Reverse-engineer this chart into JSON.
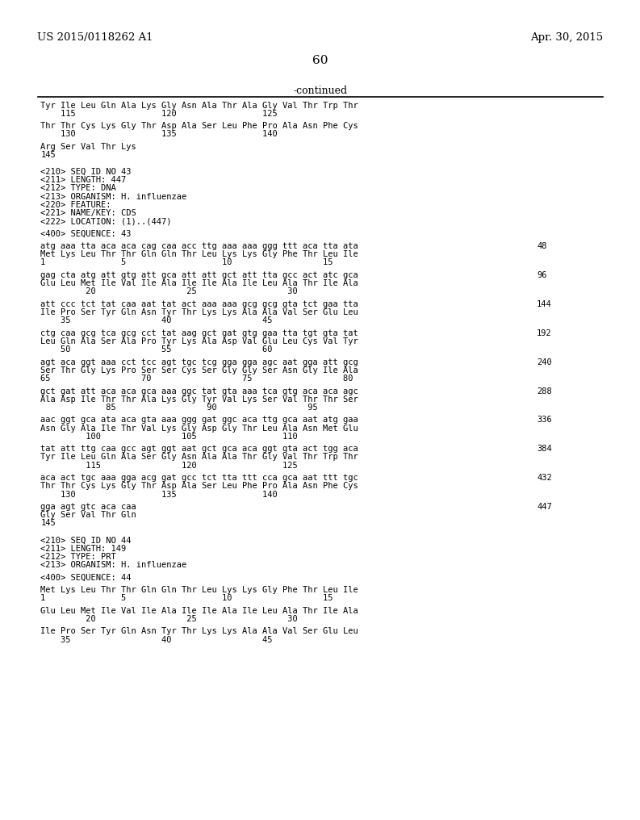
{
  "header_left": "US 2015/0118262 A1",
  "header_right": "Apr. 30, 2015",
  "page_number": "60",
  "continued_label": "-continued",
  "background_color": "#ffffff",
  "text_color": "#000000",
  "mono_font_size": 7.5,
  "header_font_size": 9.5,
  "page_num_font_size": 11,
  "content": [
    {
      "type": "text",
      "text": "Tyr Ile Leu Gln Ala Lys Gly Asn Ala Thr Ala Gly Val Thr Trp Thr"
    },
    {
      "type": "text",
      "text": "    115                 120                 125"
    },
    {
      "type": "spacer"
    },
    {
      "type": "text",
      "text": "Thr Thr Cys Lys Gly Thr Asp Ala Ser Leu Phe Pro Ala Asn Phe Cys"
    },
    {
      "type": "text",
      "text": "    130                 135                 140"
    },
    {
      "type": "spacer"
    },
    {
      "type": "text",
      "text": "Arg Ser Val Thr Lys"
    },
    {
      "type": "text",
      "text": "145"
    },
    {
      "type": "spacer"
    },
    {
      "type": "spacer"
    },
    {
      "type": "text",
      "text": "<210> SEQ ID NO 43"
    },
    {
      "type": "text",
      "text": "<211> LENGTH: 447"
    },
    {
      "type": "text",
      "text": "<212> TYPE: DNA"
    },
    {
      "type": "text",
      "text": "<213> ORGANISM: H. influenzae"
    },
    {
      "type": "text",
      "text": "<220> FEATURE:"
    },
    {
      "type": "text",
      "text": "<221> NAME/KEY: CDS"
    },
    {
      "type": "text",
      "text": "<222> LOCATION: (1)..(447)"
    },
    {
      "type": "spacer"
    },
    {
      "type": "text",
      "text": "<400> SEQUENCE: 43"
    },
    {
      "type": "spacer"
    },
    {
      "type": "seq_block",
      "dna": "atg aaa tta aca aca cag caa acc ttg aaa aaa ggg ttt aca tta ata",
      "aa": "Met Lys Leu Thr Thr Gln Gln Thr Leu Lys Lys Gly Phe Thr Leu Ile",
      "nums": "1               5                   10                  15",
      "num_right": "48"
    },
    {
      "type": "spacer"
    },
    {
      "type": "seq_block",
      "dna": "gag cta atg att gtg att gca att att gct att tta gcc act atc gca",
      "aa": "Glu Leu Met Ile Val Ile Ala Ile Ile Ala Ile Leu Ala Thr Ile Ala",
      "nums": "         20                  25                  30",
      "num_right": "96"
    },
    {
      "type": "spacer"
    },
    {
      "type": "seq_block",
      "dna": "att ccc tct tat caa aat tat act aaa aaa gcg gcg gta tct gaa tta",
      "aa": "Ile Pro Ser Tyr Gln Asn Tyr Thr Lys Lys Ala Ala Val Ser Glu Leu",
      "nums": "    35                  40                  45",
      "num_right": "144"
    },
    {
      "type": "spacer"
    },
    {
      "type": "seq_block",
      "dna": "ctg caa gcg tca gcg cct tat aag gct gat gtg gaa tta tgt gta tat",
      "aa": "Leu Gln Ala Ser Ala Pro Tyr Lys Ala Asp Val Glu Leu Cys Val Tyr",
      "nums": "    50                  55                  60",
      "num_right": "192"
    },
    {
      "type": "spacer"
    },
    {
      "type": "seq_block",
      "dna": "agt aca ggt aaa cct tcc agt tgc tcg gga gga agc aat gga att gcg",
      "aa": "Ser Thr Gly Lys Pro Ser Ser Cys Ser Gly Gly Ser Asn Gly Ile Ala",
      "nums": "65                  70                  75                  80",
      "num_right": "240"
    },
    {
      "type": "spacer"
    },
    {
      "type": "seq_block",
      "dna": "gct gat att aca aca gca aaa ggc tat gta aaa tca gtg aca aca agc",
      "aa": "Ala Asp Ile Thr Thr Ala Lys Gly Tyr Val Lys Ser Val Thr Thr Ser",
      "nums": "             85                  90                  95",
      "num_right": "288"
    },
    {
      "type": "spacer"
    },
    {
      "type": "seq_block",
      "dna": "aac ggt gca ata aca gta aaa ggg gat ggc aca ttg gca aat atg gaa",
      "aa": "Asn Gly Ala Ile Thr Val Lys Gly Asp Gly Thr Leu Ala Asn Met Glu",
      "nums": "         100                105                 110",
      "num_right": "336"
    },
    {
      "type": "spacer"
    },
    {
      "type": "seq_block",
      "dna": "tat att ttg caa gcc agt ggt aat gct gca aca ggt gta act tgg aca",
      "aa": "Tyr Ile Leu Gln Ala Ser Gly Asn Ala Ala Thr Gly Val Thr Trp Thr",
      "nums": "         115                120                 125",
      "num_right": "384"
    },
    {
      "type": "spacer"
    },
    {
      "type": "seq_block",
      "dna": "aca act tgc aaa gga acg gat gcc tct tta ttt cca gca aat ttt tgc",
      "aa": "Thr Thr Cys Lys Gly Thr Asp Ala Ser Leu Phe Pro Ala Asn Phe Cys",
      "nums": "    130                 135                 140",
      "num_right": "432"
    },
    {
      "type": "spacer"
    },
    {
      "type": "seq_block",
      "dna": "gga agt gtc aca caa",
      "aa": "Gly Ser Val Thr Gln",
      "nums": "145",
      "num_right": "447"
    },
    {
      "type": "spacer"
    },
    {
      "type": "spacer"
    },
    {
      "type": "text",
      "text": "<210> SEQ ID NO 44"
    },
    {
      "type": "text",
      "text": "<211> LENGTH: 149"
    },
    {
      "type": "text",
      "text": "<212> TYPE: PRT"
    },
    {
      "type": "text",
      "text": "<213> ORGANISM: H. influenzae"
    },
    {
      "type": "spacer"
    },
    {
      "type": "text",
      "text": "<400> SEQUENCE: 44"
    },
    {
      "type": "spacer"
    },
    {
      "type": "text",
      "text": "Met Lys Leu Thr Thr Gln Gln Thr Leu Lys Lys Gly Phe Thr Leu Ile"
    },
    {
      "type": "text",
      "text": "1               5                   10                  15"
    },
    {
      "type": "spacer"
    },
    {
      "type": "text",
      "text": "Glu Leu Met Ile Val Ile Ala Ile Ile Ala Ile Leu Ala Thr Ile Ala"
    },
    {
      "type": "text",
      "text": "         20                  25                  30"
    },
    {
      "type": "spacer"
    },
    {
      "type": "text",
      "text": "Ile Pro Ser Tyr Gln Asn Tyr Thr Lys Lys Ala Ala Val Ser Glu Leu"
    },
    {
      "type": "text",
      "text": "    35                  40                  45"
    }
  ]
}
